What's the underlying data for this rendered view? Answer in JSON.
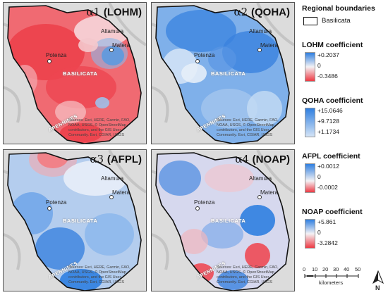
{
  "panels": [
    {
      "symbol": "α1",
      "label": "(LOHM)"
    },
    {
      "symbol": "α2",
      "label": "(QOHA)"
    },
    {
      "symbol": "α3",
      "label": "(AFPL)"
    },
    {
      "symbol": "α4",
      "label": "(NOAP)"
    }
  ],
  "cities": {
    "altamura": "Altamura",
    "matera": "Matera",
    "potenza": "Potenza"
  },
  "region_label": "BASILICATA",
  "mountains_label": "APENNINES",
  "credit_text": "Sources: Esri, HERE, Garmin, FAO, NOAA, USGS, © OpenStreetMap contributors, and the GIS User Community. Esri, CGIAR, USGS",
  "legend": {
    "boundaries_title": "Regional boundaries",
    "boundary_item": "Basilicata",
    "lohm": {
      "title": "LOHM coefficient",
      "max": "+0.2037",
      "mid": "0",
      "min": "-0.3486"
    },
    "qoha": {
      "title": "QOHA coefficient",
      "max": "+15.0646",
      "mid": "+9.7128",
      "min": "+1.1734"
    },
    "afpl": {
      "title": "AFPL coefficient",
      "max": "+0.0012",
      "mid": "0",
      "min": "-0.0002"
    },
    "noap": {
      "title": "NOAP coefficient",
      "max": "+5.861",
      "mid": "0",
      "min": "-3.2842"
    }
  },
  "scale": {
    "ticks": [
      "0",
      "10",
      "20",
      "30",
      "40",
      "50"
    ],
    "unit": "kilometers"
  },
  "north_label": "N",
  "colors": {
    "positive": "#2f7fe0",
    "negative": "#ee3a44",
    "neutral": "#f4f2f4",
    "border": "#111111"
  }
}
